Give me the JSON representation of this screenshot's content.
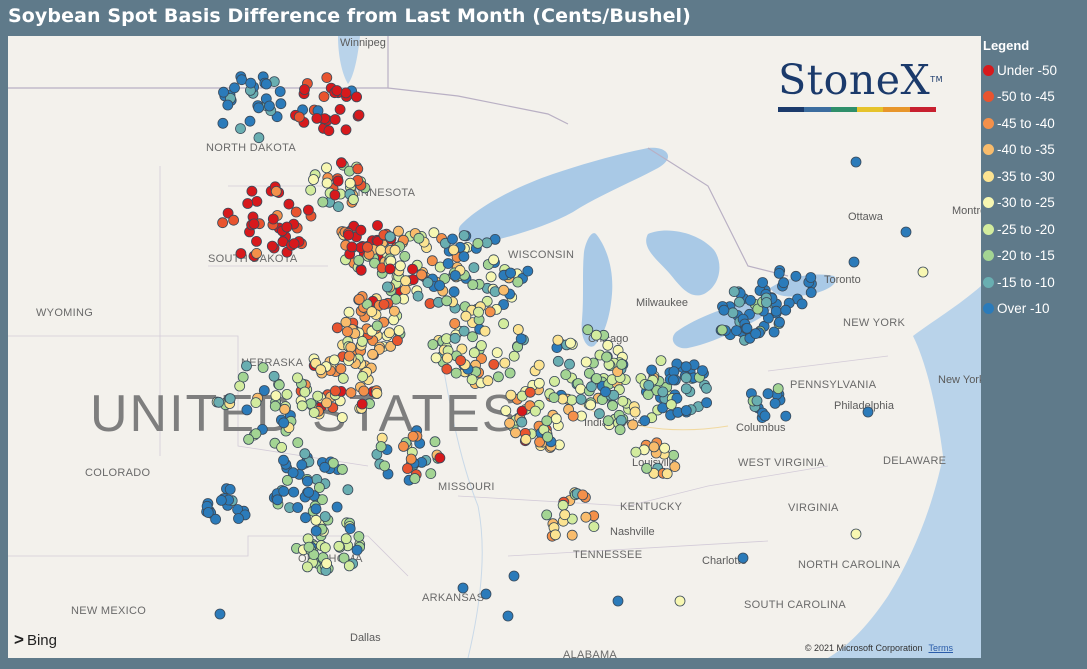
{
  "title": "Soybean Spot Basis Difference from Last Month (Cents/Bushel)",
  "legend": {
    "title": "Legend",
    "items": [
      {
        "label": "Under -50",
        "color": "#d7191c"
      },
      {
        "label": "-50 to -45",
        "color": "#e8542f"
      },
      {
        "label": "-45 to -40",
        "color": "#f4904a"
      },
      {
        "label": "-40 to -35",
        "color": "#f9bc6c"
      },
      {
        "label": "-35 to -30",
        "color": "#fce391"
      },
      {
        "label": "-30 to -25",
        "color": "#f7f7b2"
      },
      {
        "label": "-25 to -20",
        "color": "#d3ec9e"
      },
      {
        "label": "-20 to -15",
        "color": "#a3d493"
      },
      {
        "label": "-15 to -10",
        "color": "#69aeb1"
      },
      {
        "label": "Over -10",
        "color": "#2b7bba"
      }
    ]
  },
  "logo": {
    "text": "StoneX",
    "tm": "TM"
  },
  "map": {
    "country_label": "UNITED STATES",
    "state_labels": [
      "NORTH DAKOTA",
      "SOUTH DAKOTA",
      "MINNESOTA",
      "WYOMING",
      "NEBRASKA",
      "COLORADO",
      "MISSOURI",
      "NEW MEXICO",
      "OKLAHOMA",
      "ARKANSAS",
      "TENNESSEE",
      "KENTUCKY",
      "WEST VIRGINIA",
      "VIRGINIA",
      "NORTH CAROLINA",
      "SOUTH CAROLINA",
      "PENNSYLVANIA",
      "NEW YORK",
      "DELAWARE",
      "ALABAMA",
      "WISCONSIN"
    ],
    "city_labels": [
      "Winnipeg",
      "Ottawa",
      "Montreal",
      "Toronto",
      "Chicago",
      "Milwaukee",
      "Columbus",
      "Louisville",
      "Nashville",
      "Charlotte",
      "Dallas",
      "Philadelphia",
      "New York",
      "Indianapolis"
    ],
    "bing": "Bing",
    "copyright": "© 2021 Microsoft Corporation",
    "terms": "Terms"
  }
}
